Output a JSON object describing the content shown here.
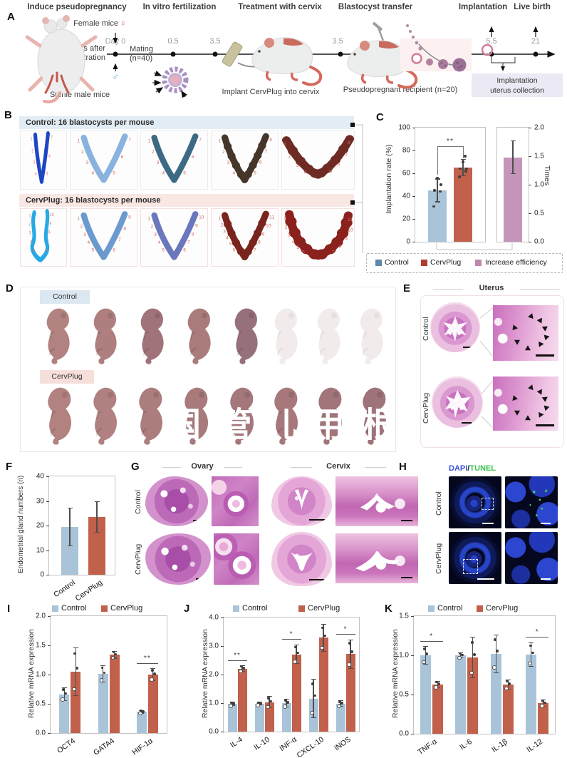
{
  "letters": {
    "A": "A",
    "B": "B",
    "C": "C",
    "D": "D",
    "E": "E",
    "F": "F",
    "G": "G",
    "H": "H",
    "I": "I",
    "J": "J",
    "K": "K"
  },
  "colors": {
    "control_bar": "#a9c4d9",
    "cervplug_bar": "#c1604b",
    "increase_bar": "#c495b8",
    "legend_control": "#5d87ab",
    "legend_cervplug": "#b03d2c",
    "legend_increase": "#c087ae",
    "site_number": "#d4685c",
    "dapi_blue": "#3450d8",
    "tunel_green": "#3fc24f"
  },
  "panels": {
    "A": {
      "steps": [
        "Induce pseudopregnancy",
        "In vitro fertilization",
        "Treatment with cervix",
        "Blastocyst transfer",
        "Implantation",
        "Live birth"
      ],
      "timeline": {
        "day0": "Day 0",
        "p05": "0.5",
        "p35a": "3.5",
        "p35b": "3.5",
        "p55": "5.5",
        "p21": "21"
      },
      "female_mice": "Female mice",
      "female_symbol": "♀",
      "male_symbol": "♂",
      "castration1": "2 weeks after",
      "castration2": "castration",
      "mating1": "Mating",
      "mating2": "(n=40)",
      "sterile": "Sterile male mice",
      "implant": "Implant CervPlug into cervix",
      "recipient": "Pseudopregnant recipient (n=20)",
      "collection1": "Implantation",
      "collection2": "uterus collection"
    },
    "B": {
      "control_header": "Control: 16 blastocysts per mouse",
      "cervplug_header": "CervPlug: 16 blastocysts per mouse",
      "control_uteri": [
        {
          "shape": "v-thin",
          "tint": "#1d45c4",
          "sites": 7
        },
        {
          "shape": "v",
          "tint": "#8ab2de",
          "sites": 7
        },
        {
          "shape": "v",
          "tint": "#3c6a84",
          "sites": 7
        },
        {
          "shape": "v-beads",
          "tint": "#46362a",
          "sites": 8
        },
        {
          "shape": "v-wide",
          "tint": "#6e2b24",
          "sites": 8
        }
      ],
      "cervplug_uteri": [
        {
          "shape": "v-irregular",
          "tint": "#27a9e4",
          "sites": 10
        },
        {
          "shape": "v",
          "tint": "#6a9ace",
          "sites": 9
        },
        {
          "shape": "v",
          "tint": "#6b77bd",
          "sites": 10
        },
        {
          "shape": "v-beads",
          "tint": "#7a241e",
          "sites": 11
        },
        {
          "shape": "u-wide-beads",
          "tint": "#8a211c",
          "sites": 11
        }
      ]
    },
    "D": {
      "control_label": "Control",
      "cervplug_label": "CervPlug",
      "pups": {
        "control_solid": 5,
        "control_faded": 3,
        "cervplug_solid": 8
      },
      "watermark": [
        "国",
        "管",
        "儿",
        "用",
        "根"
      ]
    },
    "E": {
      "title": "Uterus",
      "control": "Control",
      "cervplug": "CervPlug"
    },
    "G": {
      "ovary": "Ovary",
      "cervix": "Cervix",
      "control": "Control",
      "cervplug": "CervPlug"
    },
    "H": {
      "dapi": "DAPI",
      "slash": "/",
      "tunel": "TUNEL",
      "control": "Control",
      "cervplug": "CervPlug"
    }
  },
  "chart_data": [
    {
      "id": "implantation-rate",
      "type": "bar",
      "categories": [
        "Control",
        "CervPlug"
      ],
      "values": [
        45,
        65
      ],
      "errors": [
        10,
        7
      ],
      "points": [
        [
          31,
          44,
          45,
          50,
          56
        ],
        [
          57,
          62,
          64,
          64,
          70,
          75
        ]
      ],
      "bar_colors": [
        "#a9c4d9",
        "#c1604b"
      ],
      "ylabel": "Implantation rate (%)",
      "ylim": [
        0,
        100
      ],
      "yticks": [
        "0",
        "20",
        "40",
        "60",
        "80",
        "100"
      ],
      "sig": {
        "label": "**"
      }
    },
    {
      "id": "increase-times",
      "type": "bar",
      "categories": [
        "Increase efficiency"
      ],
      "values": [
        1.48
      ],
      "errors": [
        0.29
      ],
      "bar_colors": [
        "#c495b8"
      ],
      "ylabel": "Times",
      "ylim": [
        0,
        2
      ],
      "yticks": [
        "0.0",
        "0.5",
        "1.0",
        "1.5",
        "2.0"
      ]
    },
    {
      "id": "gland-numbers",
      "type": "bar",
      "categories": [
        "Control",
        "CervPlug"
      ],
      "values": [
        19.5,
        23.5
      ],
      "errors": [
        7.7,
        6.2
      ],
      "bar_colors": [
        "#a9c4d9",
        "#c1604b"
      ],
      "ylabel": "Endometrial gland numbers (n)",
      "ylim": [
        0,
        40
      ],
      "yticks": [
        "0",
        "10",
        "20",
        "30",
        "40"
      ]
    },
    {
      "id": "mrna-embryo",
      "type": "bar",
      "categories": [
        "OCT4",
        "GATA4",
        "HIF-1α"
      ],
      "series": [
        {
          "name": "Control",
          "color": "#a9c4d9",
          "values": [
            0.66,
            1.01,
            0.36
          ],
          "errors": [
            0.11,
            0.14,
            0.02
          ]
        },
        {
          "name": "CervPlug",
          "color": "#c1604b",
          "values": [
            1.05,
            1.34,
            1.0
          ],
          "errors": [
            0.41,
            0.06,
            0.1
          ]
        }
      ],
      "ylabel": "Relative mRNA expression",
      "ylim": [
        0,
        2
      ],
      "yticks": [
        "0.0",
        "0.5",
        "1.0",
        "1.5",
        "2.0"
      ],
      "sig": [
        {
          "category": "HIF-1α",
          "label": "**"
        }
      ]
    },
    {
      "id": "mrna-immune-up",
      "type": "bar",
      "categories": [
        "IL-4",
        "IL-10",
        "INF-α",
        "CXCL-10",
        "iNOS"
      ],
      "series": [
        {
          "name": "Control",
          "color": "#a9c4d9",
          "values": [
            0.97,
            0.98,
            1.0,
            1.16,
            0.98
          ],
          "errors": [
            0.06,
            0.05,
            0.14,
            0.68,
            0.1
          ]
        },
        {
          "name": "CervPlug",
          "color": "#c1604b",
          "values": [
            2.21,
            1.03,
            2.71,
            3.29,
            2.72
          ],
          "errors": [
            0.1,
            0.2,
            0.33,
            0.47,
            0.5
          ]
        }
      ],
      "ylabel": "Relative mRNA expression",
      "ylim": [
        0,
        4
      ],
      "yticks": [
        "0.0",
        "1.0",
        "2.0",
        "3.0",
        "4.0"
      ],
      "sig": [
        {
          "category": "IL-4",
          "label": "**"
        },
        {
          "category": "INF-α",
          "label": "*"
        },
        {
          "category": "iNOS",
          "label": "*"
        }
      ]
    },
    {
      "id": "mrna-inflam-down",
      "type": "bar",
      "categories": [
        "TNF-α",
        "IL-6",
        "IL-1β",
        "IL-12"
      ],
      "series": [
        {
          "name": "Control",
          "color": "#a9c4d9",
          "values": [
            1.0,
            1.0,
            1.02,
            1.01
          ],
          "errors": [
            0.11,
            0.03,
            0.24,
            0.15
          ]
        },
        {
          "name": "CervPlug",
          "color": "#c1604b",
          "values": [
            0.63,
            0.97,
            0.63,
            0.39
          ],
          "errors": [
            0.04,
            0.26,
            0.06,
            0.04
          ]
        }
      ],
      "ylabel": "Relative mRNA expression",
      "ylim": [
        0,
        1.5
      ],
      "yticks": [
        "0.0",
        "0.5",
        "1.0",
        "1.5"
      ],
      "sig": [
        {
          "category": "TNF-α",
          "label": "*"
        },
        {
          "category": "IL-12",
          "label": "*"
        }
      ]
    }
  ]
}
